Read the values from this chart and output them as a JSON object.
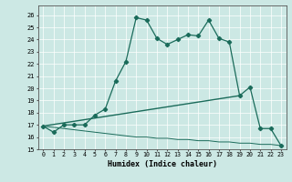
{
  "title": "",
  "xlabel": "Humidex (Indice chaleur)",
  "xlim": [
    -0.5,
    23.5
  ],
  "ylim": [
    15.0,
    26.8
  ],
  "yticks": [
    15,
    16,
    17,
    18,
    19,
    20,
    21,
    22,
    23,
    24,
    25,
    26
  ],
  "xticks": [
    0,
    1,
    2,
    3,
    4,
    5,
    6,
    7,
    8,
    9,
    10,
    11,
    12,
    13,
    14,
    15,
    16,
    17,
    18,
    19,
    20,
    21,
    22,
    23
  ],
  "bg_color": "#cce8e4",
  "line_color": "#1a6b5a",
  "curve1_x": [
    0,
    1,
    2,
    3,
    4,
    5,
    6,
    7,
    8,
    9,
    10,
    11,
    12,
    13,
    14,
    15,
    16,
    17,
    18,
    19,
    20,
    21,
    22,
    23
  ],
  "curve1_y": [
    16.9,
    16.4,
    17.0,
    17.0,
    17.0,
    17.8,
    18.3,
    20.6,
    22.2,
    25.8,
    25.6,
    24.1,
    23.6,
    24.0,
    24.4,
    24.3,
    25.6,
    24.1,
    23.8,
    19.4,
    20.1,
    16.7,
    16.7,
    15.3
  ],
  "curve2_x": [
    0,
    1,
    2,
    3,
    4,
    5,
    6,
    7,
    8,
    9,
    10,
    11,
    12,
    13,
    14,
    15,
    16,
    17,
    18,
    19,
    20,
    21,
    22,
    23
  ],
  "curve2_y": [
    16.9,
    16.8,
    16.7,
    16.6,
    16.5,
    16.4,
    16.3,
    16.2,
    16.1,
    16.0,
    16.0,
    15.9,
    15.9,
    15.8,
    15.8,
    15.7,
    15.7,
    15.6,
    15.6,
    15.5,
    15.5,
    15.4,
    15.4,
    15.3
  ],
  "curve3_x": [
    0,
    19
  ],
  "curve3_y": [
    16.9,
    19.4
  ]
}
